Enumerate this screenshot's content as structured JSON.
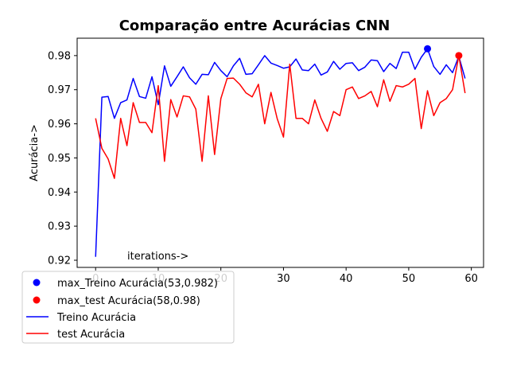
{
  "chart_data": {
    "type": "line",
    "title": "Comparação entre Acurácias CNN",
    "ylabel": "Acurácia->",
    "annotation": "iterations->",
    "xlim": [
      -2.95,
      61.95
    ],
    "ylim": [
      0.9179,
      0.9851
    ],
    "xticks": [
      0,
      10,
      20,
      30,
      40,
      50,
      60
    ],
    "xtick_labels": [
      "0",
      "10",
      "20",
      "30",
      "40",
      "50",
      "60"
    ],
    "yticks": [
      0.92,
      0.93,
      0.94,
      0.95,
      0.96,
      0.97,
      0.98
    ],
    "ytick_labels": [
      "0.92",
      "0.93",
      "0.94",
      "0.95",
      "0.96",
      "0.97",
      "0.98"
    ],
    "x": [
      0,
      1,
      2,
      3,
      4,
      5,
      6,
      7,
      8,
      9,
      10,
      11,
      12,
      13,
      14,
      15,
      16,
      17,
      18,
      19,
      20,
      21,
      22,
      23,
      24,
      25,
      26,
      27,
      28,
      29,
      30,
      31,
      32,
      33,
      34,
      35,
      36,
      37,
      38,
      39,
      40,
      41,
      42,
      43,
      44,
      45,
      46,
      47,
      48,
      49,
      50,
      51,
      52,
      53,
      54,
      55,
      56,
      57,
      58,
      59
    ],
    "series": [
      {
        "name": "Treino Acurácia",
        "color": "#0000ff",
        "values": [
          0.921,
          0.9678,
          0.968,
          0.9616,
          0.9662,
          0.967,
          0.9733,
          0.968,
          0.9675,
          0.9738,
          0.9656,
          0.977,
          0.971,
          0.9738,
          0.9767,
          0.9735,
          0.9716,
          0.9745,
          0.9744,
          0.978,
          0.9756,
          0.9738,
          0.977,
          0.9792,
          0.9745,
          0.9747,
          0.9773,
          0.98,
          0.9778,
          0.9771,
          0.9763,
          0.9767,
          0.979,
          0.9758,
          0.9756,
          0.9775,
          0.9743,
          0.9752,
          0.9783,
          0.976,
          0.9777,
          0.9779,
          0.9756,
          0.9766,
          0.9787,
          0.9785,
          0.9753,
          0.9777,
          0.9762,
          0.981,
          0.981,
          0.976,
          0.9795,
          0.982,
          0.9768,
          0.9745,
          0.9773,
          0.975,
          0.9798,
          0.9733
        ]
      },
      {
        "name": "test Acurácia",
        "color": "#ff0000",
        "values": [
          0.9616,
          0.9528,
          0.9497,
          0.944,
          0.9616,
          0.9536,
          0.9662,
          0.9604,
          0.9604,
          0.9574,
          0.9712,
          0.949,
          0.9671,
          0.962,
          0.9682,
          0.9679,
          0.9643,
          0.949,
          0.9682,
          0.951,
          0.9674,
          0.9733,
          0.9734,
          0.9716,
          0.9691,
          0.9679,
          0.9716,
          0.96,
          0.9692,
          0.9615,
          0.9561,
          0.9775,
          0.9616,
          0.9616,
          0.96,
          0.967,
          0.9616,
          0.9578,
          0.9636,
          0.9624,
          0.97,
          0.9708,
          0.9674,
          0.9682,
          0.9695,
          0.965,
          0.9729,
          0.9666,
          0.9712,
          0.9708,
          0.9716,
          0.9733,
          0.9586,
          0.9697,
          0.9624,
          0.9662,
          0.9674,
          0.97,
          0.98,
          0.969
        ]
      }
    ],
    "markers": [
      {
        "label": "max_Treino Acurácia(53,0.982)",
        "x": 53,
        "y": 0.982,
        "color": "#0000ff"
      },
      {
        "label": "max_test Acurácia(58,0.98)",
        "x": 58,
        "y": 0.98,
        "color": "#ff0000"
      }
    ],
    "legend_placement": "bottom-left, overlapping x axis",
    "grid": false
  }
}
